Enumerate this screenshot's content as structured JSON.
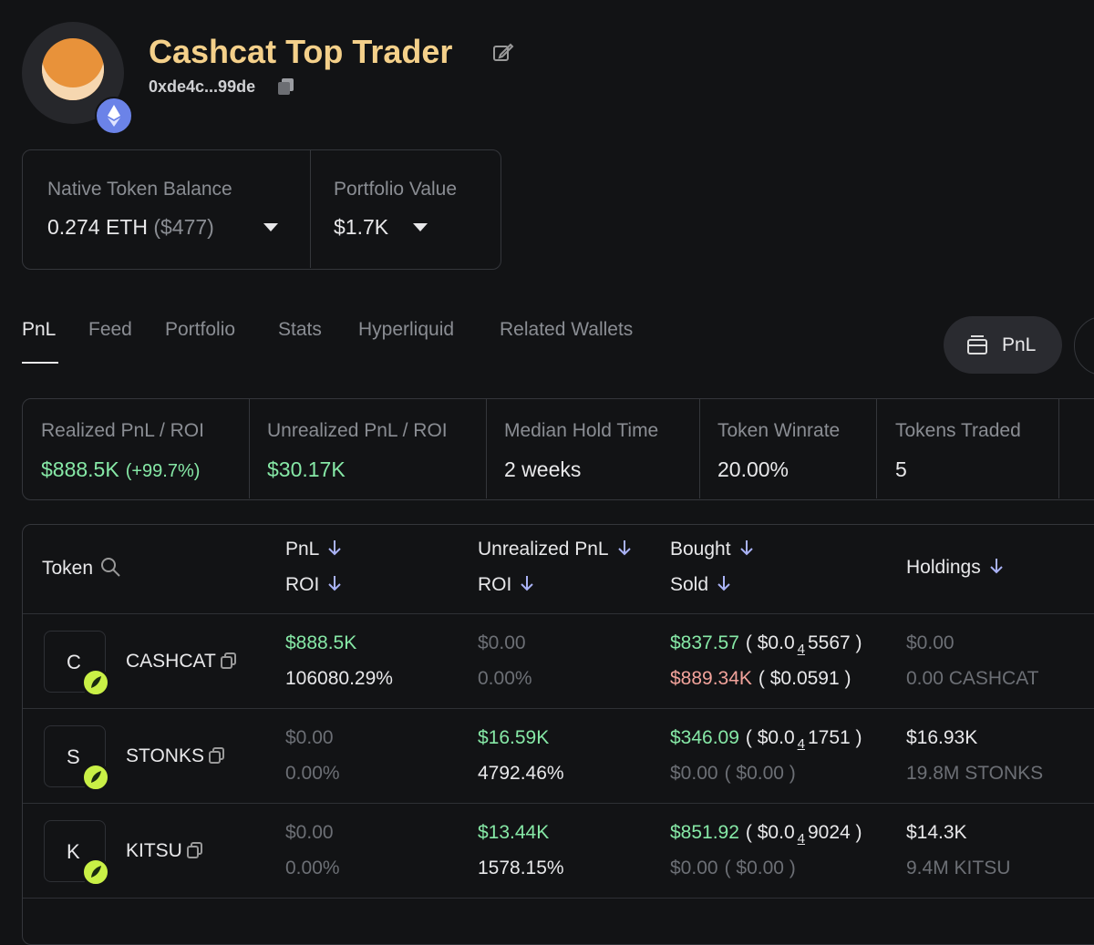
{
  "profile": {
    "name": "Cashcat Top Trader",
    "address": "0xde4c...99de"
  },
  "balances": [
    {
      "label": "Native Token Balance",
      "value": "0.274 ETH",
      "extra": "($477)"
    },
    {
      "label": "Portfolio Value",
      "value": "$1.7K"
    }
  ],
  "tabs": [
    "PnL",
    "Feed",
    "Portfolio",
    "Stats",
    "Hyperliquid",
    "Related Wallets"
  ],
  "pnl_button": "PnL",
  "stats": [
    {
      "label": "Realized PnL / ROI",
      "value": "$888.5K",
      "extra": "(+99.7%)"
    },
    {
      "label": "Unrealized PnL / ROI",
      "value": "$30.17K"
    },
    {
      "label": "Median Hold Time",
      "value": "2 weeks"
    },
    {
      "label": "Token Winrate",
      "value": "20.00%"
    },
    {
      "label": "Tokens Traded",
      "value": "5"
    }
  ],
  "table": {
    "columns": [
      [
        "Token"
      ],
      [
        "PnL",
        "ROI"
      ],
      [
        "Unrealized PnL",
        "ROI"
      ],
      [
        "Bought",
        "Sold"
      ],
      [
        "Holdings"
      ]
    ],
    "rows": [
      {
        "letter": "C",
        "token": "CASHCAT",
        "pnl": "$888.5K",
        "roi": "106080.29%",
        "unrealized_pnl": "$0.00",
        "unrealized_roi": "0.00%",
        "bought": "$837.57",
        "bought_price": {
          "prefix": "( $0.0",
          "zeros": "4",
          "digits": "5567 )"
        },
        "sold": "$889.34K",
        "sold_price": "( $0.0591 )",
        "holdings": "$0.00",
        "holdings_amount": "0.00 CASHCAT"
      },
      {
        "letter": "S",
        "token": "STONKS",
        "pnl": "$0.00",
        "roi": "0.00%",
        "unrealized_pnl": "$16.59K",
        "unrealized_roi": "4792.46%",
        "bought": "$346.09",
        "bought_price": {
          "prefix": "( $0.0",
          "zeros": "4",
          "digits": "1751 )"
        },
        "sold": "$0.00",
        "sold_price": "( $0.00 )",
        "holdings": "$16.93K",
        "holdings_amount": "19.8M STONKS"
      },
      {
        "letter": "K",
        "token": "KITSU",
        "pnl": "$0.00",
        "roi": "0.00%",
        "unrealized_pnl": "$13.44K",
        "unrealized_roi": "1578.15%",
        "bought": "$851.92",
        "bought_price": {
          "prefix": "( $0.0",
          "zeros": "4",
          "digits": "9024 )"
        },
        "sold": "$0.00",
        "sold_price": "( $0.00 )",
        "holdings": "$14.3K",
        "holdings_amount": "9.4M KITSU"
      }
    ]
  }
}
